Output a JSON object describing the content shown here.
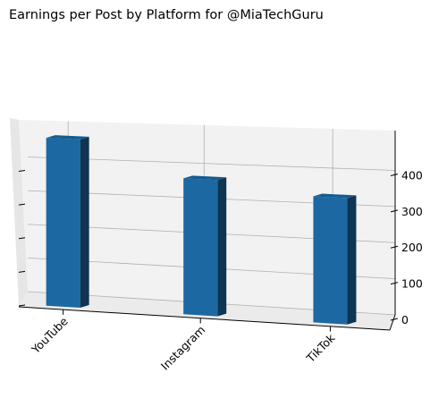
{
  "chart_data": {
    "type": "bar",
    "title": "Earnings per Post by Platform for @MiaTechGuru",
    "categories": [
      "YouTube",
      "Instagram",
      "TikTok"
    ],
    "values": [
      450,
      360,
      330
    ],
    "zlim": [
      0,
      500
    ],
    "z_ticks": [
      0,
      100,
      200,
      300,
      400
    ],
    "grid": true,
    "colors": {
      "bar_front": "#1c68a2",
      "bar_top": "#175b8e",
      "bar_side": "#0f3552",
      "pane": "#f2f2f2",
      "grid": "#b0b0b0"
    }
  }
}
